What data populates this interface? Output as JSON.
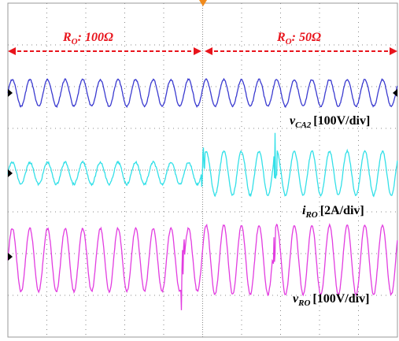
{
  "regions": [
    {
      "symbol": "R",
      "subscript": "O",
      "value": ": 100Ω"
    },
    {
      "symbol": "R",
      "subscript": "O",
      "value": ": 50Ω"
    }
  ],
  "traces": [
    {
      "symbol": "v",
      "subscript": "CA2",
      "scale": "[100V/div]"
    },
    {
      "symbol": "i",
      "subscript": "RO",
      "scale": "[2A/div]"
    },
    {
      "symbol": "v",
      "subscript": "RO",
      "scale": "[100V/div]"
    }
  ]
}
